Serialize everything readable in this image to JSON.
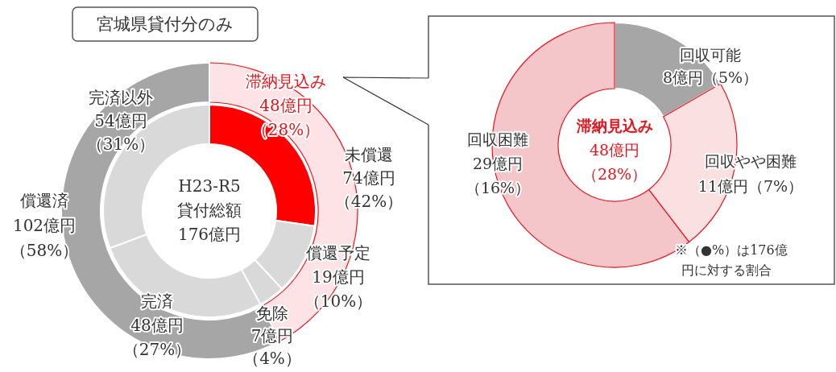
{
  "chart_data": [
    {
      "type": "donut",
      "title": "宮城県貸付分のみ",
      "categories": [
        "未償還",
        "償還済"
      ],
      "values": [
        74,
        102
      ],
      "colors": [
        "#fde3e5",
        "#a6a6a6"
      ],
      "value_labels": [
        "74億円（42%）",
        "102億円（58%）"
      ],
      "annotations": [
        "H23-R5",
        "貸付総額",
        "176億円"
      ]
    },
    {
      "type": "donut",
      "categories": [
        "滞納見込み",
        "償還予定",
        "免除",
        "完済",
        "完済以外"
      ],
      "values": [
        48,
        19,
        7,
        48,
        54
      ],
      "colors": [
        "#ff0000",
        "#d9d9d9",
        "#d9d9d9",
        "#d9d9d9",
        "#d9d9d9"
      ],
      "value_labels": [
        "48億円（28%）",
        "19億円（10%）",
        "7億円（4%）",
        "48億円（27%）",
        "54億円（31%）"
      ]
    },
    {
      "type": "donut",
      "title": "滞納見込み",
      "categories": [
        "回収可能",
        "回収やや困難",
        "回収困難"
      ],
      "values": [
        8,
        11,
        29
      ],
      "colors": [
        "#a6a6a6",
        "#fbe0e2",
        "#f4c6ca"
      ],
      "value_labels": [
        "8億円（5%）",
        "11億円（7%）",
        "29億円（16%）"
      ],
      "annotations": [
        "48億円（28%）",
        "※（●%）は176億円に対する割合"
      ]
    }
  ]
}
